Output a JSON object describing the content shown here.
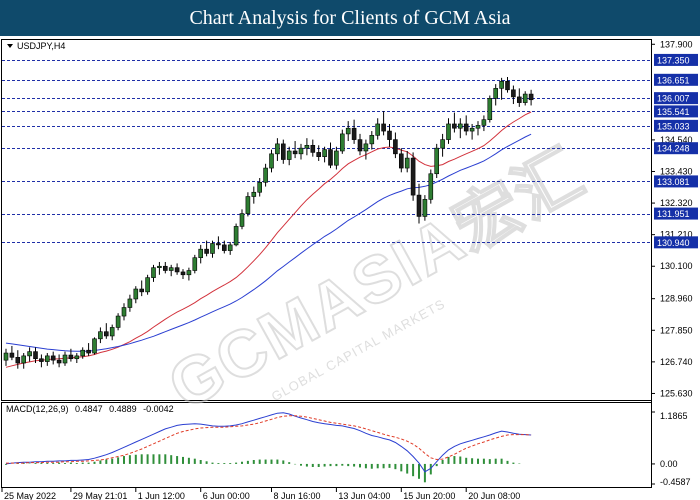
{
  "header": {
    "title": "Chart Analysis for Clients of GCM Asia"
  },
  "colors": {
    "header_bg": "#0f4a6b",
    "bull": "#2e7d32",
    "bear": "#1b1b1b",
    "ma_fast": "#d2323c",
    "ma_slow": "#2b3fd1",
    "level_line": "#1f2fa8",
    "level_label_bg": "#1530a8",
    "macd_line": "#2b3fd1",
    "signal_line": "#e03c28",
    "histogram": "#2f8f3a"
  },
  "watermark": {
    "main": "GCMASIA宏汇",
    "sub": "GLOBAL CAPITAL MARKETS"
  },
  "chart_data": [
    {
      "type": "candlestick",
      "symbol_label": "USDJPY,H4",
      "x_tick_labels": [
        "25 May 2022",
        "29 May 21:01",
        "1 Jun 12:00",
        "6 Jun 00:00",
        "8 Jun 16:00",
        "13 Jun 04:00",
        "15 Jun 20:00",
        "20 Jun 08:00"
      ],
      "y_tick_labels": [
        "137.900",
        "134.540",
        "133.430",
        "132.320",
        "131.210",
        "130.100",
        "128.960",
        "127.850",
        "126.740",
        "125.630"
      ],
      "ylim": [
        125.4,
        138.05
      ],
      "levels": [
        "137.350",
        "136.651",
        "136.007",
        "135.541",
        "135.033",
        "134.248",
        "133.081",
        "131.951",
        "130.940"
      ],
      "ohlc": [
        [
          126.8,
          127.2,
          126.6,
          127.05
        ],
        [
          127.05,
          127.3,
          126.8,
          126.9
        ],
        [
          126.9,
          127.15,
          126.5,
          126.7
        ],
        [
          126.7,
          127.05,
          126.5,
          126.95
        ],
        [
          126.95,
          127.25,
          126.75,
          127.1
        ],
        [
          127.1,
          127.25,
          126.7,
          126.85
        ],
        [
          126.85,
          127.0,
          126.55,
          126.75
        ],
        [
          126.75,
          127.05,
          126.6,
          126.95
        ],
        [
          126.95,
          127.1,
          126.65,
          126.8
        ],
        [
          126.8,
          127.0,
          126.55,
          126.7
        ],
        [
          126.7,
          127.1,
          126.6,
          126.98
        ],
        [
          126.98,
          127.2,
          126.75,
          126.85
        ],
        [
          126.85,
          127.05,
          126.7,
          126.95
        ],
        [
          126.95,
          127.25,
          126.85,
          127.15
        ],
        [
          127.15,
          127.4,
          126.95,
          127.05
        ],
        [
          127.05,
          127.6,
          127.0,
          127.55
        ],
        [
          127.55,
          127.95,
          127.4,
          127.8
        ],
        [
          127.8,
          128.1,
          127.55,
          127.65
        ],
        [
          127.65,
          128.05,
          127.5,
          127.95
        ],
        [
          127.95,
          128.45,
          127.85,
          128.35
        ],
        [
          128.35,
          128.8,
          128.2,
          128.65
        ],
        [
          128.65,
          129.1,
          128.5,
          128.95
        ],
        [
          128.95,
          129.4,
          128.8,
          129.3
        ],
        [
          129.3,
          129.6,
          129.05,
          129.2
        ],
        [
          129.2,
          129.8,
          129.1,
          129.7
        ],
        [
          129.7,
          130.15,
          129.55,
          130.05
        ],
        [
          130.05,
          130.25,
          129.8,
          130.1
        ],
        [
          130.1,
          130.25,
          129.85,
          129.95
        ],
        [
          129.95,
          130.15,
          129.75,
          130.05
        ],
        [
          130.05,
          130.2,
          129.8,
          129.9
        ],
        [
          129.9,
          130.0,
          129.65,
          129.8
        ],
        [
          129.8,
          130.05,
          129.6,
          129.95
        ],
        [
          129.95,
          130.5,
          129.85,
          130.4
        ],
        [
          130.4,
          130.85,
          130.2,
          130.7
        ],
        [
          130.7,
          131.0,
          130.45,
          130.55
        ],
        [
          130.55,
          131.0,
          130.4,
          130.9
        ],
        [
          130.9,
          131.15,
          130.7,
          130.85
        ],
        [
          130.85,
          131.0,
          130.55,
          130.65
        ],
        [
          130.65,
          130.95,
          130.5,
          130.85
        ],
        [
          130.85,
          131.6,
          130.8,
          131.5
        ],
        [
          131.5,
          132.1,
          131.4,
          131.95
        ],
        [
          131.95,
          132.7,
          131.85,
          132.55
        ],
        [
          132.55,
          132.9,
          132.3,
          132.7
        ],
        [
          132.7,
          133.2,
          132.55,
          133.05
        ],
        [
          133.05,
          133.7,
          132.9,
          133.55
        ],
        [
          133.55,
          134.2,
          133.4,
          134.05
        ],
        [
          134.05,
          134.6,
          133.8,
          134.4
        ],
        [
          134.4,
          134.55,
          133.7,
          133.85
        ],
        [
          133.85,
          134.3,
          133.65,
          134.15
        ],
        [
          134.15,
          134.5,
          133.9,
          134.05
        ],
        [
          134.05,
          134.4,
          133.85,
          134.25
        ],
        [
          134.25,
          134.6,
          134.0,
          134.35
        ],
        [
          134.35,
          134.55,
          133.95,
          134.1
        ],
        [
          134.1,
          134.35,
          133.8,
          133.95
        ],
        [
          133.95,
          134.3,
          133.75,
          134.2
        ],
        [
          134.2,
          134.45,
          133.55,
          133.65
        ],
        [
          133.65,
          134.3,
          133.5,
          134.15
        ],
        [
          134.15,
          134.9,
          134.05,
          134.75
        ],
        [
          134.75,
          135.2,
          134.5,
          134.95
        ],
        [
          134.95,
          135.25,
          134.4,
          134.55
        ],
        [
          134.55,
          134.75,
          134.0,
          134.15
        ],
        [
          134.15,
          134.55,
          133.85,
          134.4
        ],
        [
          134.4,
          134.85,
          134.2,
          134.7
        ],
        [
          134.7,
          135.3,
          134.55,
          135.1
        ],
        [
          135.1,
          135.55,
          134.7,
          134.85
        ],
        [
          134.85,
          135.1,
          134.3,
          134.55
        ],
        [
          134.55,
          134.8,
          133.9,
          134.05
        ],
        [
          134.05,
          134.25,
          133.4,
          133.55
        ],
        [
          133.55,
          134.15,
          133.4,
          133.9
        ],
        [
          133.9,
          134.1,
          132.4,
          132.6
        ],
        [
          132.6,
          133.0,
          131.6,
          131.85
        ],
        [
          131.85,
          132.6,
          131.7,
          132.45
        ],
        [
          132.45,
          133.5,
          132.3,
          133.35
        ],
        [
          133.35,
          134.4,
          133.2,
          134.25
        ],
        [
          134.25,
          134.75,
          133.95,
          134.55
        ],
        [
          134.55,
          135.3,
          134.4,
          135.1
        ],
        [
          135.1,
          135.5,
          134.8,
          134.95
        ],
        [
          134.95,
          135.3,
          134.6,
          135.1
        ],
        [
          135.1,
          135.4,
          134.7,
          134.85
        ],
        [
          134.85,
          135.1,
          134.55,
          134.95
        ],
        [
          134.95,
          135.2,
          134.7,
          135.05
        ],
        [
          135.05,
          135.4,
          134.85,
          135.25
        ],
        [
          135.25,
          136.1,
          135.15,
          136.0
        ],
        [
          136.0,
          136.5,
          135.75,
          136.35
        ],
        [
          136.35,
          136.72,
          135.95,
          136.6
        ],
        [
          136.6,
          136.75,
          136.2,
          136.3
        ],
        [
          136.3,
          136.45,
          135.8,
          136.05
        ],
        [
          136.05,
          136.35,
          135.7,
          135.85
        ],
        [
          135.85,
          136.25,
          135.75,
          136.15
        ],
        [
          136.15,
          136.3,
          135.75,
          135.95
        ]
      ],
      "series": [
        {
          "type": "ma",
          "period": 20,
          "color": "#d2323c",
          "values": [
            126.55,
            126.6,
            126.65,
            126.7,
            126.74,
            126.78,
            126.8,
            126.82,
            126.84,
            126.85,
            126.87,
            126.88,
            126.9,
            126.92,
            126.95,
            127.0,
            127.07,
            127.12,
            127.18,
            127.26,
            127.35,
            127.45,
            127.57,
            127.68,
            127.81,
            127.96,
            128.1,
            128.24,
            128.37,
            128.49,
            128.59,
            128.7,
            128.82,
            128.96,
            129.08,
            129.21,
            129.33,
            129.44,
            129.56,
            129.7,
            129.88,
            130.08,
            130.29,
            130.51,
            130.75,
            131.01,
            131.28,
            131.51,
            131.75,
            131.98,
            132.22,
            132.44,
            132.63,
            132.81,
            133.0,
            133.15,
            133.33,
            133.53,
            133.7,
            133.82,
            133.93,
            134.02,
            134.12,
            134.22,
            134.27,
            134.29,
            134.25,
            134.18,
            134.12,
            133.97,
            133.79,
            133.67,
            133.61,
            133.63,
            133.67,
            133.78,
            133.86,
            133.96,
            134.05,
            134.14,
            134.23,
            134.34,
            134.5,
            134.68,
            134.87,
            135.03,
            135.17,
            135.29,
            135.42,
            135.52
          ]
        },
        {
          "type": "ma",
          "period": 50,
          "color": "#2b3fd1",
          "values": [
            127.4,
            127.37,
            127.34,
            127.31,
            127.28,
            127.25,
            127.22,
            127.19,
            127.17,
            127.15,
            127.13,
            127.12,
            127.11,
            127.11,
            127.12,
            127.14,
            127.17,
            127.2,
            127.24,
            127.28,
            127.33,
            127.38,
            127.44,
            127.5,
            127.57,
            127.64,
            127.72,
            127.8,
            127.88,
            127.96,
            128.04,
            128.12,
            128.21,
            128.31,
            128.4,
            128.5,
            128.59,
            128.68,
            128.77,
            128.88,
            129.0,
            129.14,
            129.28,
            129.43,
            129.59,
            129.76,
            129.94,
            130.09,
            130.25,
            130.4,
            130.56,
            130.71,
            130.86,
            131.0,
            131.15,
            131.27,
            131.41,
            131.56,
            131.71,
            131.83,
            131.96,
            132.09,
            132.23,
            132.37,
            132.49,
            132.59,
            132.67,
            132.74,
            132.82,
            132.86,
            132.87,
            132.91,
            132.97,
            133.06,
            133.16,
            133.27,
            133.37,
            133.47,
            133.55,
            133.63,
            133.71,
            133.8,
            133.92,
            134.05,
            134.19,
            134.31,
            134.42,
            134.53,
            134.64,
            134.74
          ]
        }
      ]
    },
    {
      "type": "bar",
      "title": "MACD(12,26,9)",
      "readout": [
        "0.4847",
        "0.4889",
        "-0.0042"
      ],
      "y_tick_labels": [
        "1.1865",
        "0.00",
        "-0.4587"
      ],
      "ylim": [
        -0.4587,
        1.1865
      ],
      "series": [
        {
          "name": "MACD",
          "type": "line",
          "color": "#2b3fd1",
          "values": [
            0.0,
            0.02,
            0.03,
            0.04,
            0.04,
            0.05,
            0.05,
            0.06,
            0.06,
            0.07,
            0.07,
            0.08,
            0.08,
            0.09,
            0.1,
            0.13,
            0.17,
            0.21,
            0.26,
            0.32,
            0.38,
            0.44,
            0.5,
            0.56,
            0.62,
            0.68,
            0.74,
            0.8,
            0.84,
            0.88,
            0.9,
            0.91,
            0.92,
            0.91,
            0.89,
            0.87,
            0.86,
            0.86,
            0.87,
            0.89,
            0.92,
            0.96,
            1.0,
            1.04,
            1.08,
            1.12,
            1.16,
            1.17,
            1.14,
            1.09,
            1.05,
            1.01,
            0.97,
            0.94,
            0.92,
            0.9,
            0.88,
            0.87,
            0.84,
            0.81,
            0.76,
            0.7,
            0.65,
            0.62,
            0.58,
            0.55,
            0.49,
            0.4,
            0.3,
            0.17,
            0.02,
            -0.18,
            -0.1,
            0.05,
            0.2,
            0.32,
            0.4,
            0.46,
            0.5,
            0.54,
            0.58,
            0.62,
            0.66,
            0.71,
            0.75,
            0.73,
            0.7,
            0.68,
            0.67,
            0.66
          ]
        },
        {
          "name": "Signal",
          "type": "line",
          "color": "#e03c28",
          "values": [
            0.02,
            0.02,
            0.02,
            0.02,
            0.03,
            0.03,
            0.03,
            0.04,
            0.04,
            0.04,
            0.05,
            0.05,
            0.06,
            0.06,
            0.07,
            0.08,
            0.09,
            0.11,
            0.14,
            0.17,
            0.2,
            0.24,
            0.29,
            0.34,
            0.4,
            0.46,
            0.52,
            0.58,
            0.64,
            0.7,
            0.74,
            0.77,
            0.8,
            0.82,
            0.83,
            0.84,
            0.84,
            0.84,
            0.85,
            0.86,
            0.87,
            0.89,
            0.91,
            0.94,
            0.98,
            1.02,
            1.06,
            1.09,
            1.1,
            1.1,
            1.09,
            1.07,
            1.04,
            1.01,
            0.98,
            0.95,
            0.93,
            0.91,
            0.89,
            0.87,
            0.84,
            0.8,
            0.76,
            0.72,
            0.68,
            0.64,
            0.61,
            0.57,
            0.52,
            0.45,
            0.36,
            0.24,
            0.14,
            0.1,
            0.11,
            0.16,
            0.22,
            0.29,
            0.36,
            0.41,
            0.46,
            0.5,
            0.55,
            0.59,
            0.63,
            0.66,
            0.67,
            0.67,
            0.67,
            0.66
          ]
        },
        {
          "name": "Histogram",
          "type": "bar",
          "color": "#2f8f3a",
          "values": [
            -0.02,
            0.0,
            0.01,
            0.02,
            0.01,
            0.02,
            0.02,
            0.02,
            0.02,
            0.03,
            0.02,
            0.03,
            0.02,
            0.03,
            0.03,
            0.05,
            0.08,
            0.1,
            0.12,
            0.15,
            0.18,
            0.2,
            0.21,
            0.22,
            0.22,
            0.22,
            0.22,
            0.22,
            0.2,
            0.18,
            0.16,
            0.14,
            0.12,
            0.09,
            0.06,
            0.03,
            0.02,
            0.02,
            0.02,
            0.03,
            0.05,
            0.07,
            0.09,
            0.1,
            0.1,
            0.1,
            0.1,
            0.08,
            0.04,
            -0.01,
            -0.04,
            -0.06,
            -0.07,
            -0.07,
            -0.06,
            -0.05,
            -0.05,
            -0.04,
            -0.05,
            -0.06,
            -0.08,
            -0.1,
            -0.11,
            -0.1,
            -0.1,
            -0.09,
            -0.12,
            -0.17,
            -0.22,
            -0.28,
            -0.34,
            -0.42,
            -0.24,
            -0.05,
            0.09,
            0.16,
            0.18,
            0.17,
            0.14,
            0.13,
            0.12,
            0.12,
            0.11,
            0.12,
            0.12,
            0.07,
            0.03,
            0.01,
            0.0,
            0.0
          ]
        }
      ]
    }
  ]
}
